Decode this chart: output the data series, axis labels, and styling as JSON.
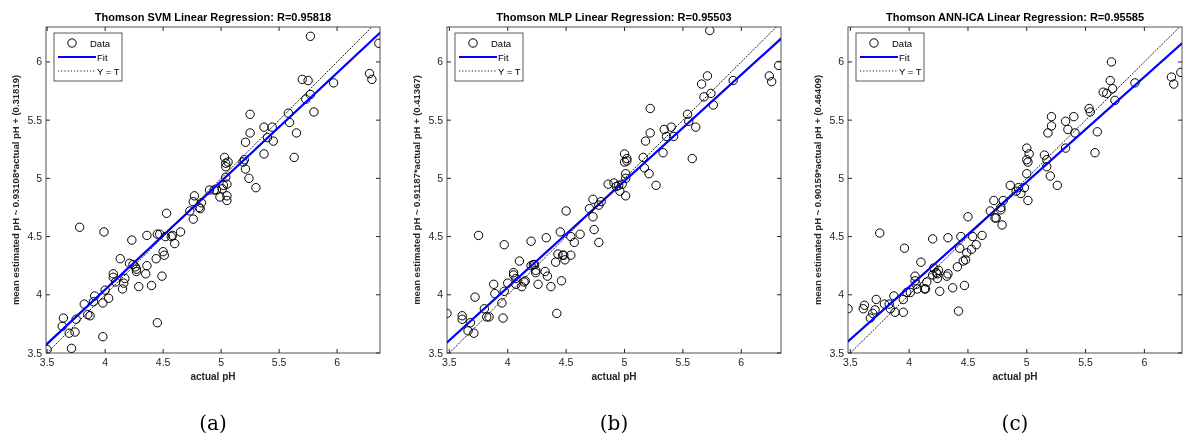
{
  "chart_data": [
    {
      "type": "scatter",
      "title": "Thomson SVM Linear Regression: R=0.95818",
      "xlabel": "actual pH",
      "ylabel": "mean estimated pH ~ 0.93108*actual pH + (0.31819)",
      "annotations": [
        "(a)"
      ],
      "xlim": [
        3.49,
        6.37
      ],
      "ylim": [
        3.5,
        6.3
      ],
      "xticks": [
        3.5,
        4,
        4.5,
        5,
        5.5,
        6
      ],
      "yticks": [
        3.5,
        4,
        4.5,
        5,
        5.5,
        6
      ],
      "legend": "top left",
      "grid": false,
      "series": [
        {
          "name": "Data",
          "type": "scatter",
          "color": "#000000",
          "marker": "circle",
          "x": [
            3.5,
            3.64,
            3.63,
            3.69,
            3.74,
            3.71,
            3.75,
            3.78,
            3.82,
            3.85,
            3.87,
            3.9,
            3.91,
            3.98,
            3.98,
            3.99,
            4.0,
            4.03,
            4.07,
            4.07,
            4.09,
            4.13,
            4.15,
            4.16,
            4.17,
            4.21,
            4.23,
            4.24,
            4.26,
            4.27,
            4.27,
            4.29,
            4.35,
            4.36,
            4.36,
            4.4,
            4.44,
            4.45,
            4.45,
            4.47,
            4.49,
            4.5,
            4.51,
            4.52,
            4.53,
            4.57,
            4.58,
            4.6,
            4.65,
            4.73,
            4.76,
            4.76,
            4.77,
            4.81,
            4.82,
            4.83,
            4.9,
            4.94,
            4.96,
            4.99,
            5.01,
            5.02,
            5.03,
            5.04,
            5.04,
            5.04,
            5.05,
            5.05,
            5.05,
            5.06,
            5.19,
            5.2,
            5.21,
            5.21,
            5.25,
            5.25,
            5.24,
            5.3,
            5.37,
            5.37,
            5.4,
            5.44,
            5.45,
            5.58,
            5.59,
            5.63,
            5.65,
            5.7,
            5.75,
            5.73,
            5.77,
            5.77,
            5.8,
            5.97,
            6.28,
            6.3,
            6.36
          ],
          "values": [
            3.53,
            3.8,
            3.73,
            3.67,
            3.68,
            3.54,
            3.79,
            4.58,
            3.92,
            3.83,
            3.82,
            3.94,
            3.99,
            3.93,
            3.64,
            4.54,
            4.04,
            3.97,
            4.18,
            4.15,
            4.11,
            4.31,
            4.05,
            4.1,
            4.14,
            4.27,
            4.47,
            4.26,
            4.24,
            4.22,
            4.2,
            4.07,
            4.18,
            4.51,
            4.25,
            4.08,
            4.31,
            3.76,
            4.52,
            4.52,
            4.16,
            4.37,
            4.34,
            4.5,
            4.7,
            4.5,
            4.51,
            4.44,
            4.54,
            4.72,
            4.65,
            4.8,
            4.85,
            4.75,
            4.74,
            4.79,
            4.9,
            4.9,
            4.9,
            4.84,
            4.91,
            4.94,
            5.18,
            5.13,
            5.1,
            5.01,
            4.95,
            4.85,
            4.81,
            5.14,
            5.14,
            5.16,
            5.31,
            5.08,
            5.39,
            5.55,
            5.0,
            4.92,
            5.44,
            5.21,
            5.35,
            5.44,
            5.32,
            5.56,
            5.48,
            5.18,
            5.39,
            5.85,
            5.84,
            5.68,
            5.72,
            6.22,
            5.57,
            5.82,
            5.9,
            5.85,
            6.16
          ]
        },
        {
          "name": "Fit",
          "type": "line",
          "color": "#0000ff",
          "marker": "none",
          "line_style": "solid",
          "x": [
            3.49,
            6.37
          ],
          "values": [
            3.57,
            6.25
          ]
        },
        {
          "name": "Y = T",
          "type": "line",
          "color": "#000000",
          "marker": "none",
          "line_style": "dotted",
          "x": [
            3.5,
            6.3
          ],
          "values": [
            3.5,
            6.3
          ]
        }
      ]
    },
    {
      "type": "scatter",
      "title": "Thomson MLP Linear Regression: R=0.95503",
      "xlabel": "actual pH",
      "ylabel": "mean estimated pH ~ 0.91187*actual pH + (0.41367)",
      "annotations": [
        "(b)"
      ],
      "xlim": [
        3.48,
        6.34
      ],
      "ylim": [
        3.5,
        6.3
      ],
      "xticks": [
        3.5,
        4,
        4.5,
        5,
        5.5,
        6
      ],
      "yticks": [
        3.5,
        4,
        4.5,
        5,
        5.5,
        6
      ],
      "legend": "top left",
      "grid": false,
      "series": [
        {
          "name": "Data",
          "type": "scatter",
          "color": "#000000",
          "marker": "circle",
          "x": [
            3.48,
            3.61,
            3.61,
            3.66,
            3.68,
            3.71,
            3.72,
            3.75,
            3.8,
            3.82,
            3.84,
            3.88,
            3.89,
            3.95,
            3.96,
            3.97,
            3.97,
            4.0,
            4.05,
            4.05,
            4.07,
            4.07,
            4.1,
            4.12,
            4.14,
            4.15,
            4.2,
            4.2,
            4.22,
            4.23,
            4.24,
            4.24,
            4.26,
            4.32,
            4.33,
            4.34,
            4.37,
            4.41,
            4.42,
            4.43,
            4.45,
            4.46,
            4.47,
            4.48,
            4.49,
            4.5,
            4.54,
            4.54,
            4.57,
            4.62,
            4.7,
            4.73,
            4.73,
            4.74,
            4.78,
            4.78,
            4.8,
            4.86,
            4.91,
            4.93,
            4.95,
            4.96,
            4.98,
            5.0,
            5.0,
            5.01,
            5.01,
            5.01,
            5.02,
            5.02,
            5.16,
            5.17,
            5.18,
            5.21,
            5.22,
            5.22,
            5.27,
            5.33,
            5.34,
            5.36,
            5.4,
            5.42,
            5.54,
            5.55,
            5.58,
            5.61,
            5.66,
            5.68,
            5.71,
            5.74,
            5.76,
            5.73,
            5.93,
            6.24,
            6.26,
            6.32
          ],
          "values": [
            3.84,
            3.82,
            3.79,
            3.69,
            3.76,
            3.67,
            3.98,
            4.51,
            3.88,
            3.81,
            3.81,
            4.09,
            4.01,
            3.93,
            3.8,
            4.43,
            4.03,
            4.1,
            4.19,
            4.17,
            4.09,
            4.14,
            4.29,
            4.07,
            4.11,
            4.12,
            4.46,
            4.25,
            4.26,
            4.26,
            4.21,
            4.19,
            4.09,
            4.2,
            4.49,
            4.16,
            4.07,
            4.28,
            3.84,
            4.35,
            4.54,
            4.12,
            4.34,
            4.34,
            4.3,
            4.72,
            4.34,
            4.5,
            4.45,
            4.52,
            4.74,
            4.82,
            4.67,
            4.56,
            4.77,
            4.45,
            4.8,
            4.95,
            4.96,
            4.93,
            4.94,
            4.89,
            4.95,
            5.21,
            5.14,
            5.04,
            5.0,
            4.85,
            5.15,
            5.17,
            5.18,
            5.09,
            5.32,
            5.04,
            5.39,
            5.6,
            4.94,
            5.22,
            5.42,
            5.36,
            5.44,
            5.36,
            5.55,
            5.49,
            5.17,
            5.44,
            5.81,
            5.7,
            5.88,
            5.73,
            5.63,
            6.27,
            5.84,
            5.88,
            5.83,
            5.97
          ]
        },
        {
          "name": "Fit",
          "type": "line",
          "color": "#0000ff",
          "marker": "none",
          "line_style": "solid",
          "x": [
            3.48,
            6.34
          ],
          "values": [
            3.59,
            6.2
          ]
        },
        {
          "name": "Y = T",
          "type": "line",
          "color": "#000000",
          "marker": "none",
          "line_style": "dotted",
          "x": [
            3.5,
            6.3
          ],
          "values": [
            3.5,
            6.3
          ]
        }
      ]
    },
    {
      "type": "scatter",
      "title": "Thomson ANN-ICA Linear Regression: R=0.95585",
      "xlabel": "actual pH",
      "ylabel": "mean estimated pH ~ 0.90159*actual pH + (0.46409)",
      "annotations": [
        "(c)"
      ],
      "xlim": [
        3.48,
        6.32
      ],
      "ylim": [
        3.5,
        6.3
      ],
      "xticks": [
        3.5,
        4,
        4.5,
        5,
        5.5,
        6
      ],
      "yticks": [
        3.5,
        4,
        4.5,
        5,
        5.5,
        6
      ],
      "legend": "top left",
      "grid": false,
      "series": [
        {
          "name": "Data",
          "type": "scatter",
          "color": "#000000",
          "marker": "circle",
          "x": [
            3.48,
            3.61,
            3.62,
            3.67,
            3.69,
            3.71,
            3.72,
            3.75,
            3.79,
            3.83,
            3.84,
            3.87,
            3.88,
            3.95,
            3.95,
            3.96,
            3.98,
            4.01,
            4.05,
            4.05,
            4.06,
            4.07,
            4.1,
            4.13,
            4.14,
            4.15,
            4.2,
            4.2,
            4.21,
            4.23,
            4.24,
            4.24,
            4.25,
            4.26,
            4.32,
            4.33,
            4.33,
            4.37,
            4.41,
            4.42,
            4.43,
            4.44,
            4.46,
            4.47,
            4.48,
            4.49,
            4.5,
            4.53,
            4.54,
            4.57,
            4.62,
            4.69,
            4.72,
            4.73,
            4.74,
            4.78,
            4.78,
            4.79,
            4.8,
            4.86,
            4.91,
            4.93,
            4.95,
            4.98,
            5.0,
            5.0,
            5.0,
            5.01,
            5.01,
            5.02,
            5.15,
            5.17,
            5.17,
            5.18,
            5.2,
            5.21,
            5.21,
            5.26,
            5.33,
            5.33,
            5.35,
            5.4,
            5.41,
            5.53,
            5.54,
            5.58,
            5.6,
            5.65,
            5.68,
            5.71,
            5.72,
            5.73,
            5.75,
            5.92,
            6.23,
            6.25,
            6.31
          ],
          "values": [
            3.88,
            3.88,
            3.91,
            3.8,
            3.84,
            3.87,
            3.96,
            4.53,
            3.92,
            3.92,
            3.88,
            3.99,
            3.85,
            3.85,
            3.96,
            4.4,
            4.02,
            4.02,
            4.16,
            4.12,
            4.09,
            4.05,
            4.28,
            4.05,
            4.05,
            4.11,
            4.17,
            4.48,
            4.23,
            4.19,
            4.18,
            4.14,
            4.21,
            4.03,
            4.16,
            4.18,
            4.49,
            4.06,
            4.24,
            3.86,
            4.4,
            4.5,
            4.29,
            4.08,
            4.3,
            4.36,
            4.67,
            4.39,
            4.5,
            4.43,
            4.51,
            4.72,
            4.81,
            4.66,
            4.66,
            4.75,
            4.73,
            4.6,
            4.81,
            4.94,
            4.89,
            4.92,
            4.87,
            4.92,
            5.26,
            5.16,
            5.04,
            5.14,
            4.81,
            5.21,
            5.2,
            5.16,
            5.1,
            5.39,
            5.02,
            5.45,
            5.53,
            4.94,
            5.26,
            5.49,
            5.42,
            5.53,
            5.39,
            5.6,
            5.57,
            5.22,
            5.4,
            5.74,
            5.73,
            5.84,
            6.0,
            5.77,
            5.67,
            5.82,
            5.87,
            5.81,
            5.91
          ]
        },
        {
          "name": "Fit",
          "type": "line",
          "color": "#0000ff",
          "marker": "none",
          "line_style": "solid",
          "x": [
            3.48,
            6.32
          ],
          "values": [
            3.6,
            6.16
          ]
        },
        {
          "name": "Y = T",
          "type": "line",
          "color": "#000000",
          "marker": "none",
          "line_style": "dotted",
          "x": [
            3.5,
            6.3
          ],
          "values": [
            3.5,
            6.3
          ]
        }
      ]
    }
  ]
}
